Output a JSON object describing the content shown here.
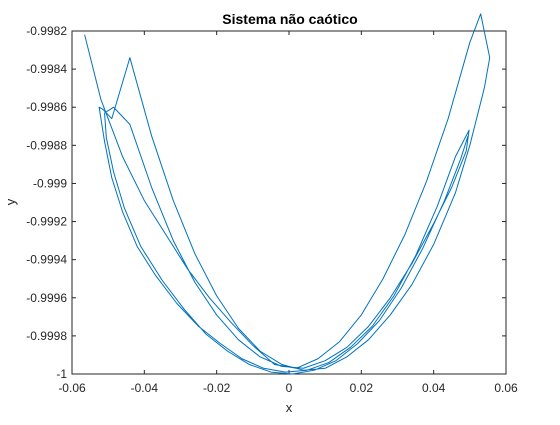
{
  "chart_data": {
    "type": "line",
    "title": "Sistema não caótico",
    "xlabel": "x",
    "ylabel": "y",
    "xlim": [
      -0.06,
      0.06
    ],
    "ylim": [
      -1,
      -0.9982
    ],
    "xticks": [
      -0.06,
      -0.04,
      -0.02,
      0,
      0.02,
      0.04,
      0.06
    ],
    "xtick_labels": [
      "-0.06",
      "-0.04",
      "-0.02",
      "0",
      "0.02",
      "0.04",
      "0.06"
    ],
    "yticks": [
      -1,
      -0.9998,
      -0.9996,
      -0.9994,
      -0.9992,
      -0.999,
      -0.9988,
      -0.9986,
      -0.9984,
      -0.9982
    ],
    "ytick_labels": [
      "-1",
      "-0.9998",
      "-0.9996",
      "-0.9994",
      "-0.9992",
      "-0.999",
      "-0.9988",
      "-0.9986",
      "-0.9984",
      "-0.9982"
    ],
    "grid": false,
    "box": true,
    "series": [
      {
        "color": "#0072bd",
        "x": [
          -0.0565,
          -0.052,
          -0.046,
          -0.04,
          -0.034,
          -0.028,
          -0.022,
          -0.016,
          -0.01,
          -0.004,
          0.002,
          0.008,
          0.014,
          0.02,
          0.026,
          0.032,
          0.038,
          0.044,
          0.05,
          0.053,
          0.0555,
          0.054,
          0.05,
          0.046,
          0.04,
          0.034,
          0.028,
          0.022,
          0.016,
          0.01,
          0.004,
          -0.002,
          -0.008,
          -0.014,
          -0.02,
          -0.026,
          -0.032,
          -0.038,
          -0.044,
          -0.049,
          -0.0515,
          -0.0525,
          -0.051,
          -0.049,
          -0.046,
          -0.042,
          -0.037,
          -0.031,
          -0.025,
          -0.019,
          -0.013,
          -0.007,
          -0.001,
          0.005,
          0.011,
          0.017,
          0.023,
          0.029,
          0.035,
          0.041,
          0.046,
          0.0498,
          0.049,
          0.045,
          0.04,
          0.034,
          0.028,
          0.022,
          0.016,
          0.01,
          0.004,
          -0.002,
          -0.008,
          -0.014,
          -0.02,
          -0.026,
          -0.032,
          -0.038,
          -0.044,
          -0.0485,
          -0.051,
          -0.0505,
          -0.0485,
          -0.0455,
          -0.041,
          -0.035,
          -0.029,
          -0.023,
          -0.017,
          -0.011,
          -0.005,
          0.001,
          0.007,
          0.013,
          0.019,
          0.025,
          0.031,
          0.037,
          0.043,
          0.0475,
          0.0495
        ],
        "y": [
          -0.99822,
          -0.99856,
          -0.99886,
          -0.99909,
          -0.99927,
          -0.99945,
          -0.9996,
          -0.99973,
          -0.99985,
          -0.99995,
          -0.99997,
          -0.99992,
          -0.99983,
          -0.99969,
          -0.9995,
          -0.99927,
          -0.99899,
          -0.99866,
          -0.99826,
          -0.99811,
          -0.99834,
          -0.9985,
          -0.9988,
          -0.99905,
          -0.99932,
          -0.99953,
          -0.99969,
          -0.99982,
          -0.99991,
          -0.99997,
          -0.99998,
          -0.99995,
          -0.99988,
          -0.99976,
          -0.99959,
          -0.99937,
          -0.99909,
          -0.99875,
          -0.99834,
          -0.99866,
          -0.99861,
          -0.9986,
          -0.99878,
          -0.99897,
          -0.99915,
          -0.99933,
          -0.99948,
          -0.99963,
          -0.99975,
          -0.99984,
          -0.99992,
          -0.99997,
          -0.99999,
          -0.99998,
          -0.99994,
          -0.99986,
          -0.99975,
          -0.99959,
          -0.99938,
          -0.99912,
          -0.99886,
          -0.99872,
          -0.99883,
          -0.99902,
          -0.99921,
          -0.99942,
          -0.9996,
          -0.99975,
          -0.99986,
          -0.99993,
          -0.99997,
          -0.99996,
          -0.99991,
          -0.99982,
          -0.99969,
          -0.99952,
          -0.9993,
          -0.99902,
          -0.99869,
          -0.9986,
          -0.99863,
          -0.99876,
          -0.99894,
          -0.99913,
          -0.99933,
          -0.99951,
          -0.99966,
          -0.99979,
          -0.99988,
          -0.99995,
          -0.99999,
          -1.0,
          -0.99998,
          -0.99993,
          -0.99984,
          -0.99972,
          -0.99955,
          -0.99934,
          -0.99909,
          -0.99887,
          -0.99875
        ]
      }
    ]
  }
}
